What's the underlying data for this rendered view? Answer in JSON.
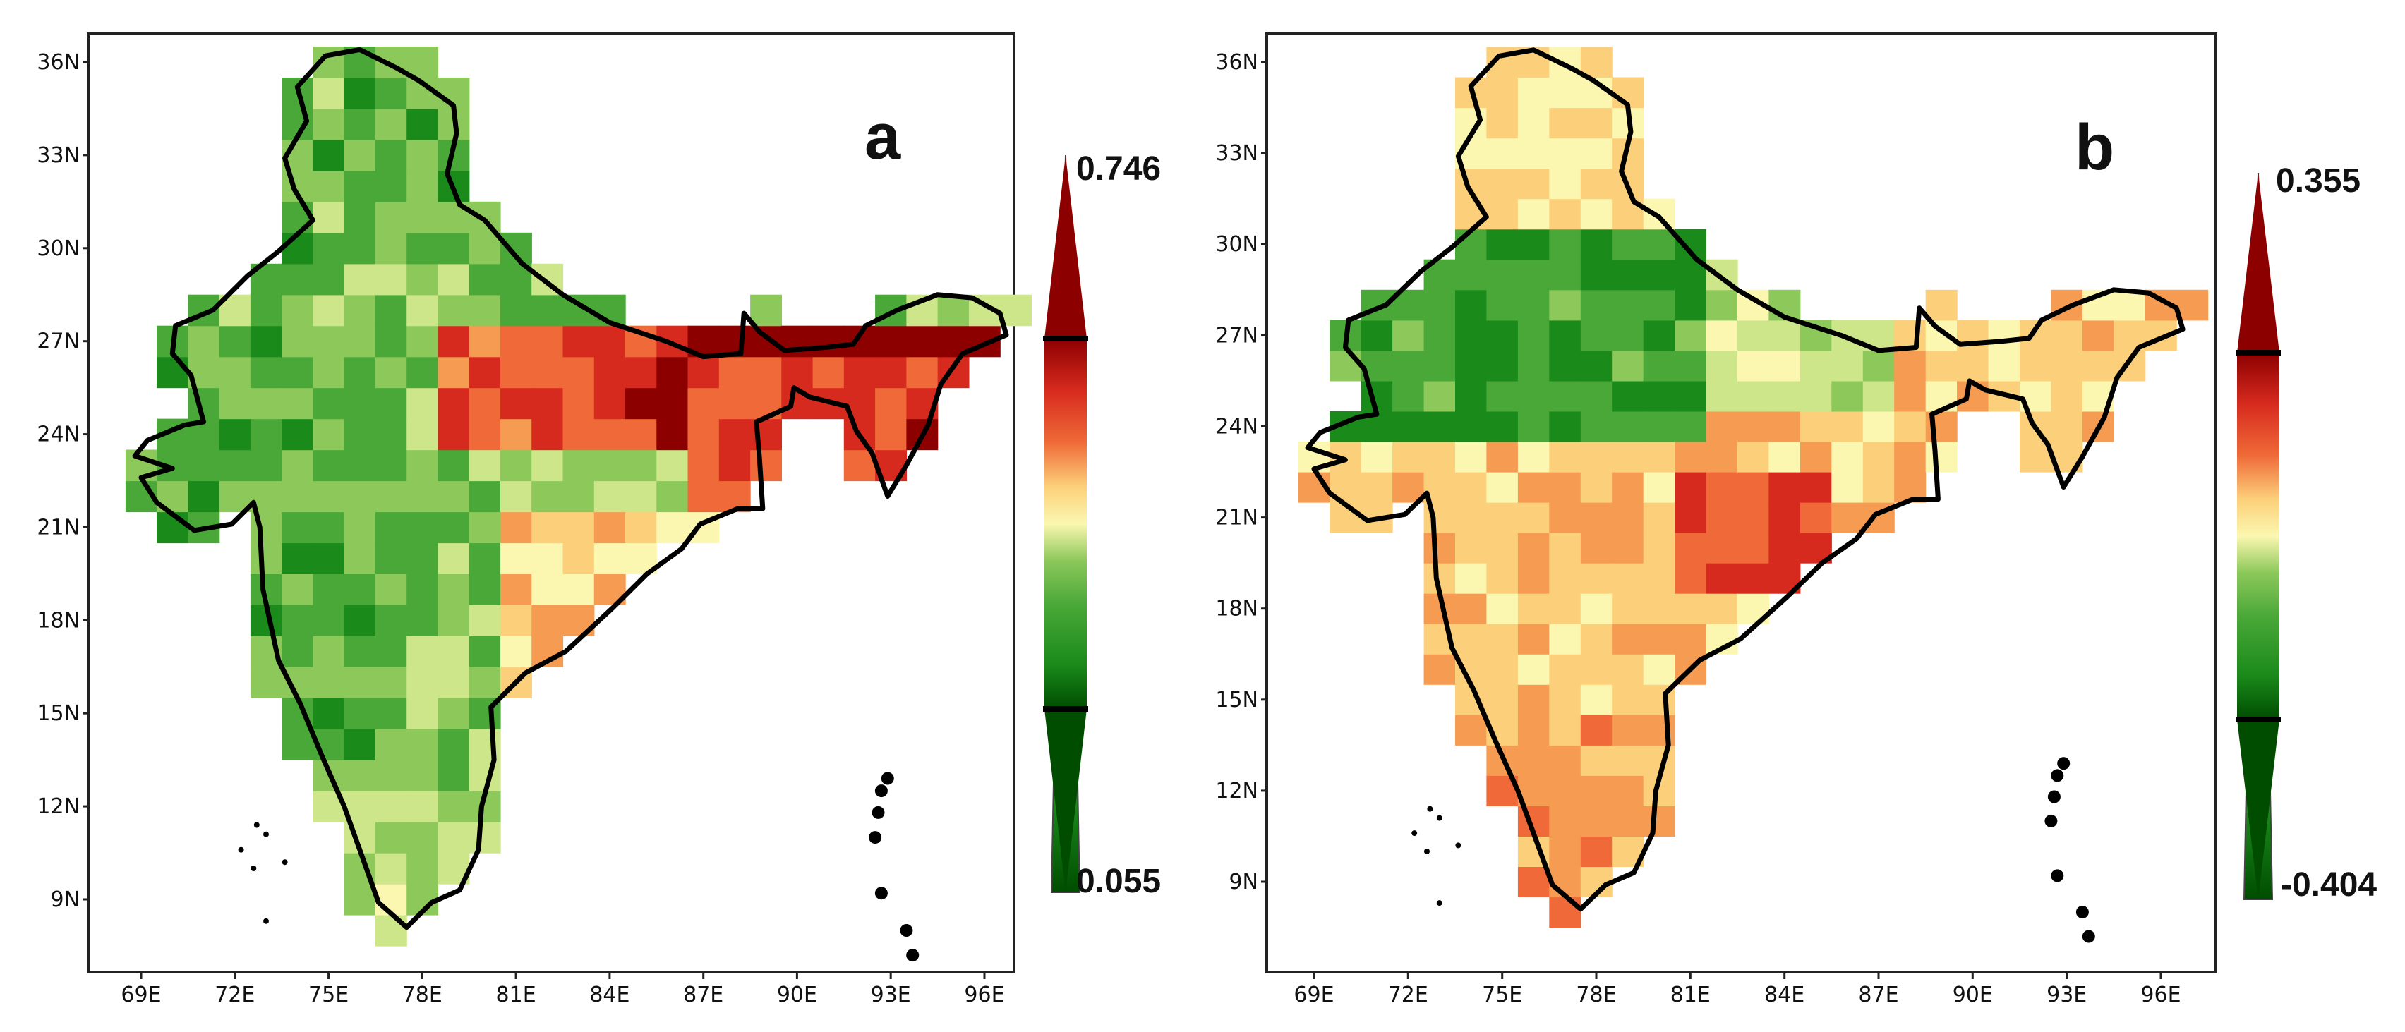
{
  "figure": {
    "panels": [
      {
        "id": "a",
        "label": "a",
        "colorbar": {
          "max_label": "0.746",
          "min_label": "0.055",
          "max": 0.746,
          "min": 0.055
        },
        "pattern": "green_west_red_north_east"
      },
      {
        "id": "b",
        "label": "b",
        "colorbar": {
          "max_label": "0.355",
          "min_label": "-0.404",
          "max": 0.355,
          "min": -0.404
        },
        "pattern": "green_northwest_red_central_south"
      }
    ],
    "x_ticks": [
      "69E",
      "72E",
      "75E",
      "78E",
      "81E",
      "84E",
      "87E",
      "90E",
      "93E",
      "96E"
    ],
    "y_ticks": [
      "36N",
      "33N",
      "30N",
      "27N",
      "24N",
      "21N",
      "18N",
      "15N",
      "12N",
      "9N"
    ],
    "x_tick_values": [
      69,
      72,
      75,
      78,
      81,
      84,
      87,
      90,
      93,
      96
    ],
    "y_tick_values": [
      36,
      33,
      30,
      27,
      24,
      21,
      18,
      15,
      12,
      9
    ],
    "lon_range": [
      68,
      98
    ],
    "lat_range": [
      6,
      37.5
    ],
    "colors": {
      "ramp": [
        "#004d00",
        "#1a8a1a",
        "#49a838",
        "#8cc85a",
        "#cde68a",
        "#fbf7b0",
        "#fcd07a",
        "#f69b52",
        "#ef6a38",
        "#d72a1e",
        "#8c0000"
      ],
      "outline": "#000000",
      "frame": "#222222"
    }
  }
}
